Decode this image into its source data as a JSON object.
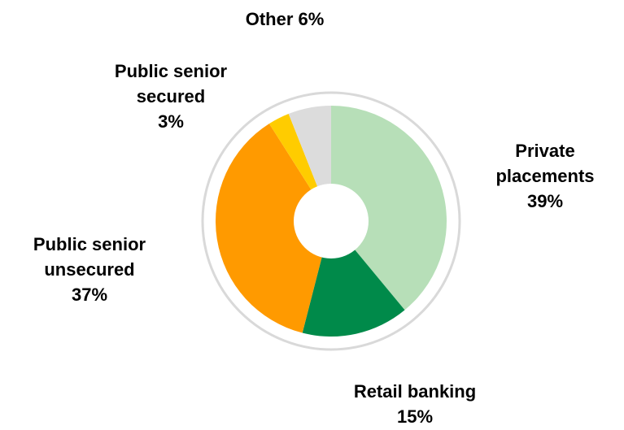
{
  "chart_data": {
    "type": "pie",
    "title": "",
    "slices": [
      {
        "label_lines": [
          "Private",
          "placements",
          "39%"
        ],
        "value": 39,
        "color": "#b7dfb8"
      },
      {
        "label_lines": [
          "Retail banking",
          "15%"
        ],
        "value": 15,
        "color": "#008a4a"
      },
      {
        "label_lines": [
          "Public senior",
          "unsecured",
          "37%"
        ],
        "value": 37,
        "color": "#ff9a00"
      },
      {
        "label_lines": [
          "Public senior",
          "secured",
          "3%"
        ],
        "value": 3,
        "color": "#ffcc00"
      },
      {
        "label_lines": [
          "Other 6%"
        ],
        "value": 6,
        "color": "#dcdcdc"
      }
    ],
    "ring_color": "#d9d9d9",
    "hole_color": "#ffffff"
  }
}
